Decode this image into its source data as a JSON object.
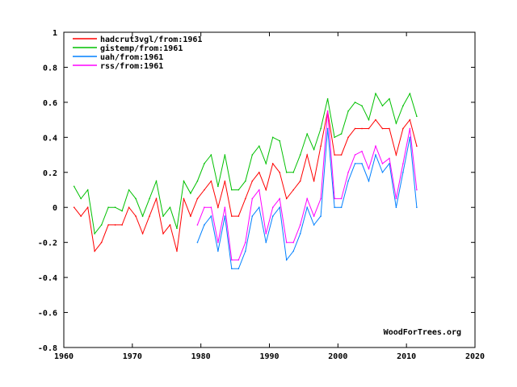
{
  "chart_data": {
    "type": "line",
    "title": "",
    "xlabel": "",
    "ylabel": "",
    "xlim": [
      1960,
      2020
    ],
    "ylim": [
      -0.8,
      1
    ],
    "xticks": [
      "1960",
      "1970",
      "1980",
      "1990",
      "2000",
      "2010",
      "2020"
    ],
    "yticks": [
      "1",
      "0.8",
      "0.6",
      "0.4",
      "0.2",
      "0",
      "-0.2",
      "-0.4",
      "-0.6",
      "-0.8"
    ],
    "legend_position": "top-left",
    "watermark": "WoodForTrees.org",
    "series": [
      {
        "name": "hadcrut3vgl/from:1961",
        "color": "#ff0000",
        "start": 1961,
        "values": [
          0.0,
          -0.05,
          0.0,
          -0.25,
          -0.2,
          -0.1,
          -0.1,
          -0.1,
          0.0,
          -0.05,
          -0.15,
          -0.05,
          0.05,
          -0.15,
          -0.1,
          -0.25,
          0.05,
          -0.05,
          0.05,
          0.1,
          0.15,
          0.0,
          0.15,
          -0.05,
          -0.05,
          0.05,
          0.15,
          0.2,
          0.1,
          0.25,
          0.2,
          0.05,
          0.1,
          0.15,
          0.3,
          0.15,
          0.35,
          0.55,
          0.3,
          0.3,
          0.4,
          0.45,
          0.45,
          0.45,
          0.5,
          0.45,
          0.45,
          0.3,
          0.45,
          0.5,
          0.35
        ]
      },
      {
        "name": "gistemp/from:1961",
        "color": "#00c000",
        "start": 1961,
        "values": [
          0.12,
          0.05,
          0.1,
          -0.15,
          -0.1,
          0.0,
          0.0,
          -0.02,
          0.1,
          0.05,
          -0.05,
          0.05,
          0.15,
          -0.05,
          0.0,
          -0.12,
          0.15,
          0.08,
          0.15,
          0.25,
          0.3,
          0.12,
          0.3,
          0.1,
          0.1,
          0.15,
          0.3,
          0.35,
          0.25,
          0.4,
          0.38,
          0.2,
          0.2,
          0.3,
          0.42,
          0.33,
          0.45,
          0.62,
          0.4,
          0.42,
          0.55,
          0.6,
          0.58,
          0.5,
          0.65,
          0.58,
          0.62,
          0.48,
          0.58,
          0.65,
          0.52
        ]
      },
      {
        "name": "uah/from:1961",
        "color": "#0080ff",
        "start": 1979,
        "values": [
          -0.2,
          -0.1,
          -0.05,
          -0.25,
          -0.05,
          -0.35,
          -0.35,
          -0.25,
          -0.05,
          0.0,
          -0.2,
          -0.05,
          0.0,
          -0.3,
          -0.25,
          -0.15,
          0.0,
          -0.1,
          -0.05,
          0.45,
          0.0,
          0.0,
          0.15,
          0.25,
          0.25,
          0.15,
          0.3,
          0.2,
          0.25,
          0.0,
          0.2,
          0.4,
          0.0
        ]
      },
      {
        "name": "rss/from:1961",
        "color": "#ff00ff",
        "start": 1979,
        "values": [
          -0.1,
          0.0,
          0.0,
          -0.2,
          0.0,
          -0.3,
          -0.3,
          -0.2,
          0.05,
          0.1,
          -0.15,
          0.0,
          0.05,
          -0.2,
          -0.2,
          -0.1,
          0.05,
          -0.05,
          0.05,
          0.55,
          0.05,
          0.05,
          0.2,
          0.3,
          0.32,
          0.22,
          0.35,
          0.25,
          0.28,
          0.05,
          0.25,
          0.45,
          0.1
        ]
      }
    ]
  }
}
